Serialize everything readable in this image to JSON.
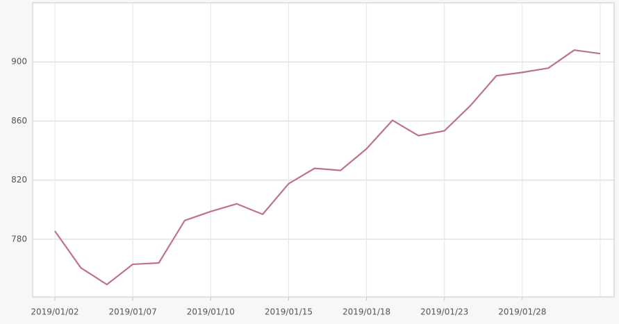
{
  "chart_data": {
    "type": "line",
    "categories": [
      "2019/01/02",
      null,
      null,
      "2019/01/07",
      null,
      null,
      "2019/01/10",
      null,
      null,
      "2019/01/15",
      null,
      null,
      "2019/01/18",
      null,
      null,
      "2019/01/23",
      null,
      null,
      "2019/01/28",
      null,
      null,
      null
    ],
    "series": [
      {
        "color": "#c0708f",
        "values": [
          785.6,
          760.7,
          749.4,
          763.1,
          764.0,
          792.7,
          798.8,
          804.0,
          796.9,
          817.6,
          828.0,
          826.6,
          841.2,
          860.5,
          850.1,
          853.4,
          870.4,
          890.6,
          892.9,
          895.8,
          908.0,
          905.6
        ]
      }
    ],
    "ylim": [
      741,
      940
    ],
    "yticks": [
      780,
      820,
      860,
      900
    ],
    "grid": true
  }
}
